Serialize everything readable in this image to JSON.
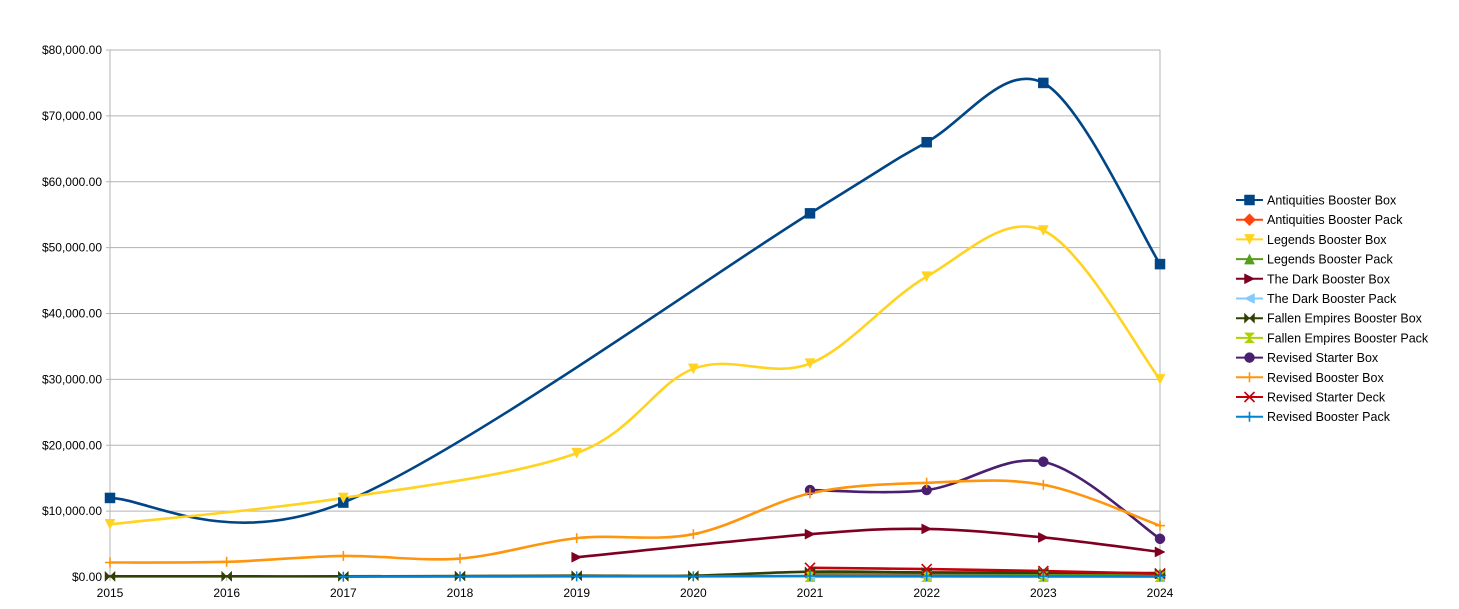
{
  "chart_data": {
    "type": "line",
    "title": "",
    "xlabel": "",
    "ylabel": "",
    "x": [
      "2015",
      "2016",
      "2017",
      "2018",
      "2019",
      "2020",
      "2021",
      "2022",
      "2023",
      "2024"
    ],
    "xlim": [
      2015,
      2024
    ],
    "ylim": [
      0,
      80000
    ],
    "ytick_values": [
      0,
      10000,
      20000,
      30000,
      40000,
      50000,
      60000,
      70000,
      80000
    ],
    "ytick_labels": [
      "$0.00",
      "$10,000.00",
      "$20,000.00",
      "$30,000.00",
      "$40,000.00",
      "$50,000.00",
      "$60,000.00",
      "$70,000.00",
      "$80,000.00"
    ],
    "grid": "horizontal",
    "legend_position": "right",
    "smooth": true,
    "series": [
      {
        "name": "Antiquities Booster Box",
        "color": "#004586",
        "marker": "square",
        "points": [
          [
            2015,
            12000
          ],
          [
            2017,
            11300
          ],
          [
            2021,
            55200
          ],
          [
            2022,
            66000
          ],
          [
            2023,
            75000
          ],
          [
            2024,
            47500
          ]
        ]
      },
      {
        "name": "Antiquities Booster Pack",
        "color": "#ff420e",
        "marker": "diamond",
        "points": [
          [
            2021,
            300
          ],
          [
            2022,
            300
          ],
          [
            2023,
            300
          ],
          [
            2024,
            250
          ]
        ]
      },
      {
        "name": "Legends Booster Box",
        "color": "#ffd320",
        "marker": "triangle-down",
        "points": [
          [
            2015,
            8000
          ],
          [
            2017,
            12000
          ],
          [
            2019,
            18800
          ],
          [
            2020,
            31600
          ],
          [
            2021,
            32400
          ],
          [
            2022,
            45600
          ],
          [
            2023,
            52600
          ],
          [
            2024,
            30000
          ]
        ]
      },
      {
        "name": "Legends Booster Pack",
        "color": "#579d1c",
        "marker": "triangle-up",
        "points": [
          [
            2021,
            600
          ],
          [
            2022,
            600
          ],
          [
            2023,
            500
          ],
          [
            2024,
            500
          ]
        ]
      },
      {
        "name": "The Dark Booster Box",
        "color": "#7e0021",
        "marker": "triangle-right",
        "points": [
          [
            2019,
            3000
          ],
          [
            2021,
            6500
          ],
          [
            2022,
            7300
          ],
          [
            2023,
            6000
          ],
          [
            2024,
            3800
          ]
        ]
      },
      {
        "name": "The Dark Booster Pack",
        "color": "#83caff",
        "marker": "triangle-left",
        "points": [
          [
            2021,
            120
          ],
          [
            2022,
            120
          ],
          [
            2023,
            100
          ],
          [
            2024,
            100
          ]
        ]
      },
      {
        "name": "Fallen Empires Booster Box",
        "color": "#314004",
        "marker": "bowtie",
        "points": [
          [
            2015,
            100
          ],
          [
            2016,
            100
          ],
          [
            2017,
            100
          ],
          [
            2018,
            150
          ],
          [
            2019,
            200
          ],
          [
            2020,
            200
          ],
          [
            2021,
            800
          ],
          [
            2022,
            700
          ],
          [
            2023,
            650
          ],
          [
            2024,
            600
          ]
        ]
      },
      {
        "name": "Fallen Empires Booster Pack",
        "color": "#aecf00",
        "marker": "hourglass",
        "points": [
          [
            2021,
            50
          ],
          [
            2022,
            50
          ],
          [
            2023,
            50
          ],
          [
            2024,
            50
          ]
        ]
      },
      {
        "name": "Revised Starter Box",
        "color": "#4b1f6f",
        "marker": "circle",
        "points": [
          [
            2021,
            13200
          ],
          [
            2022,
            13200
          ],
          [
            2023,
            17500
          ],
          [
            2024,
            5800
          ]
        ]
      },
      {
        "name": "Revised Booster Box",
        "color": "#ff950e",
        "marker": "plus",
        "points": [
          [
            2015,
            2200
          ],
          [
            2016,
            2300
          ],
          [
            2017,
            3200
          ],
          [
            2018,
            2800
          ],
          [
            2019,
            5900
          ],
          [
            2020,
            6500
          ],
          [
            2021,
            12700
          ],
          [
            2022,
            14300
          ],
          [
            2023,
            14000
          ],
          [
            2024,
            7800
          ]
        ]
      },
      {
        "name": "Revised Starter Deck",
        "color": "#c5000b",
        "marker": "x",
        "points": [
          [
            2021,
            1400
          ],
          [
            2022,
            1200
          ],
          [
            2023,
            900
          ],
          [
            2024,
            500
          ]
        ]
      },
      {
        "name": "Revised Booster Pack",
        "color": "#0084d1",
        "marker": "plus",
        "points": [
          [
            2017,
            50
          ],
          [
            2018,
            80
          ],
          [
            2019,
            100
          ],
          [
            2020,
            100
          ],
          [
            2021,
            150
          ],
          [
            2022,
            150
          ],
          [
            2023,
            120
          ],
          [
            2024,
            100
          ]
        ]
      }
    ]
  }
}
